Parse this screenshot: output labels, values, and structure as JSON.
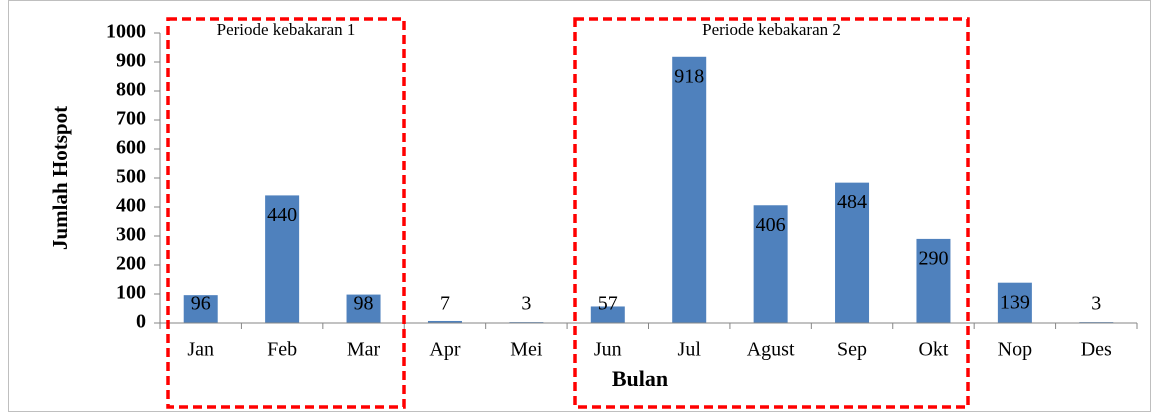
{
  "chart_data": {
    "type": "bar",
    "categories": [
      "Jan",
      "Feb",
      "Mar",
      "Apr",
      "Mei",
      "Jun",
      "Jul",
      "Agust",
      "Sep",
      "Okt",
      "Nop",
      "Des"
    ],
    "values": [
      96,
      440,
      98,
      7,
      3,
      57,
      918,
      406,
      484,
      290,
      139,
      3
    ],
    "color": "#4f81bd",
    "ylim": [
      0,
      1000
    ],
    "yticks": [
      0,
      100,
      200,
      300,
      400,
      500,
      600,
      700,
      800,
      900,
      1000
    ],
    "y_label": "Jumlah Hotspot",
    "x_label": "Bulan",
    "annotations": [
      "Periode kebakaran 1",
      "Periode kebakaran 2"
    ],
    "grid": false
  }
}
